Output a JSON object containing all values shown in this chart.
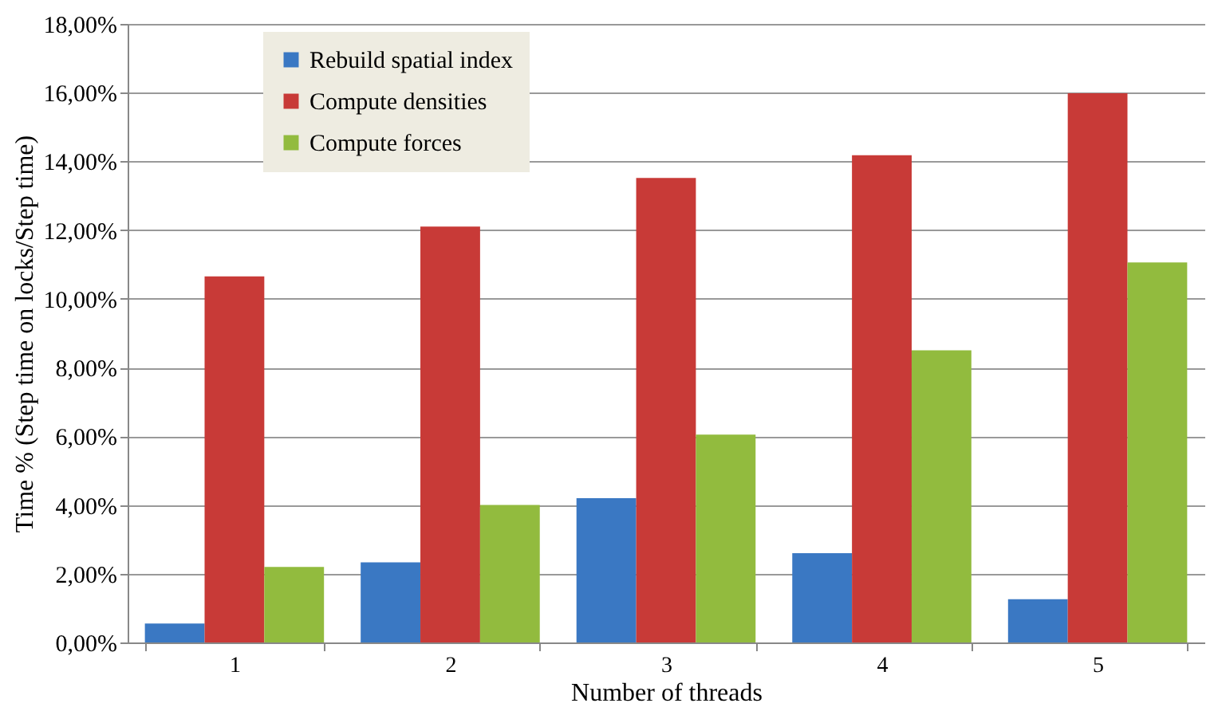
{
  "chart_data": {
    "type": "bar",
    "xlabel": "Number of threads",
    "ylabel": "Time % (Step time on locks/Step time)",
    "categories": [
      "1",
      "2",
      "3",
      "4",
      "5"
    ],
    "series": [
      {
        "name": "Rebuild spatial index",
        "color": "#3a78c3",
        "values": [
          0.55,
          2.33,
          4.2,
          2.6,
          1.26
        ]
      },
      {
        "name": "Compute densities",
        "color": "#c83a37",
        "values": [
          10.65,
          12.1,
          13.52,
          14.18,
          15.98
        ]
      },
      {
        "name": "Compute forces",
        "color": "#92bb3e",
        "values": [
          2.2,
          4.0,
          6.05,
          8.5,
          11.06
        ]
      }
    ],
    "ylim": [
      0,
      18
    ],
    "yticks": [
      {
        "value": 0,
        "label": "0,00%"
      },
      {
        "value": 2,
        "label": "2,00%"
      },
      {
        "value": 4,
        "label": "4,00%"
      },
      {
        "value": 6,
        "label": "6,00%"
      },
      {
        "value": 8,
        "label": "8,00%"
      },
      {
        "value": 10,
        "label": "10,00%"
      },
      {
        "value": 12,
        "label": "12,00%"
      },
      {
        "value": 14,
        "label": "14,00%"
      },
      {
        "value": 16,
        "label": "16,00%"
      },
      {
        "value": 18,
        "label": "18,00%"
      }
    ],
    "grid": "y",
    "legend": "top left"
  }
}
